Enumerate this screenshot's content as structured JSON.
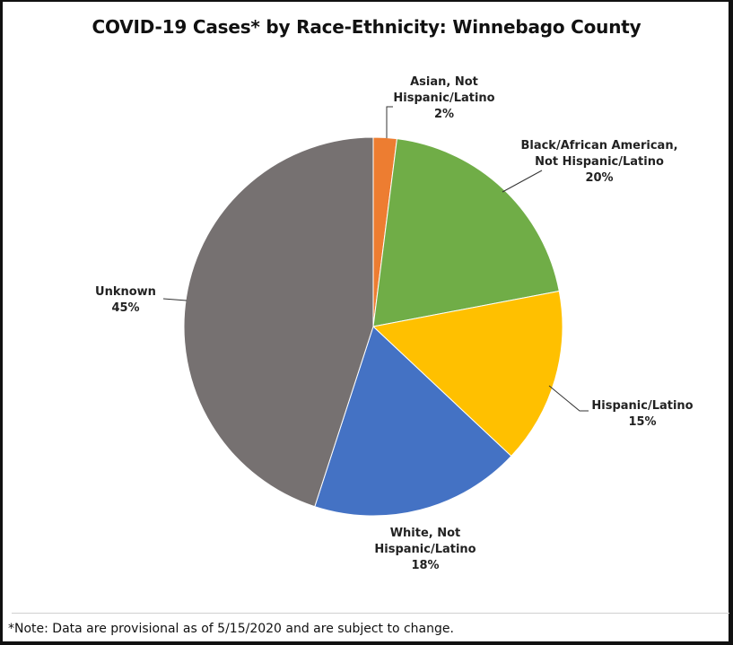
{
  "chart_data": {
    "type": "pie",
    "title": "COVID-19 Cases* by Race-Ethnicity: Winnebago County",
    "slices": [
      {
        "label": "Asian, Not Hispanic/Latino",
        "label_lines": [
          "Asian, Not",
          "Hispanic/Latino",
          "2%"
        ],
        "value": 2,
        "color": "#ED7D31"
      },
      {
        "label": "Black/African American, Not Hispanic/Latino",
        "label_lines": [
          "Black/African American,",
          "Not Hispanic/Latino",
          "20%"
        ],
        "value": 20,
        "color": "#70AD47"
      },
      {
        "label": "Hispanic/Latino",
        "label_lines": [
          "Hispanic/Latino",
          "15%"
        ],
        "value": 15,
        "color": "#FFC000"
      },
      {
        "label": "White, Not Hispanic/Latino",
        "label_lines": [
          "White, Not",
          "Hispanic/Latino",
          "18%"
        ],
        "value": 18,
        "color": "#4472C4"
      },
      {
        "label": "Unknown",
        "label_lines": [
          "Unknown",
          "45%"
        ],
        "value": 45,
        "color": "#767171"
      }
    ]
  },
  "footer": {
    "note": "*Note: Data are provisional as of 5/15/2020 and are subject to change."
  }
}
